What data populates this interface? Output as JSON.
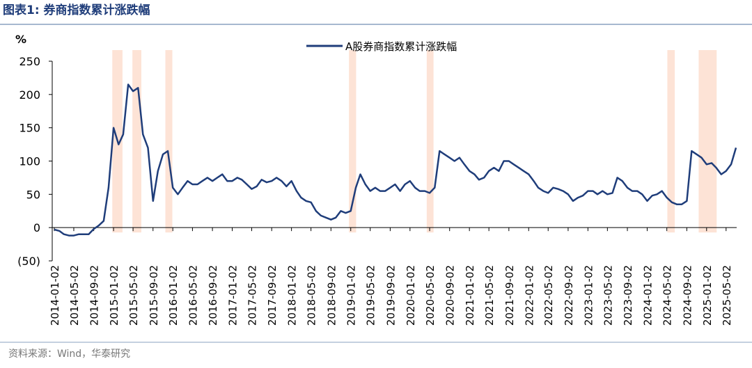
{
  "header": {
    "title": "图表1:  券商指数累计涨跌幅"
  },
  "chart_data": {
    "type": "line",
    "y_label": "%",
    "x": [
      "2014-01-02",
      "2014-02-02",
      "2014-03-02",
      "2014-04-02",
      "2014-05-02",
      "2014-06-02",
      "2014-07-02",
      "2014-08-02",
      "2014-09-02",
      "2014-10-02",
      "2014-11-02",
      "2014-12-02",
      "2015-01-02",
      "2015-02-02",
      "2015-03-02",
      "2015-04-02",
      "2015-05-02",
      "2015-06-02",
      "2015-07-02",
      "2015-08-02",
      "2015-09-02",
      "2015-10-02",
      "2015-11-02",
      "2015-12-02",
      "2016-01-02",
      "2016-02-02",
      "2016-03-02",
      "2016-04-02",
      "2016-05-02",
      "2016-06-02",
      "2016-07-02",
      "2016-08-02",
      "2016-09-02",
      "2016-10-02",
      "2016-11-02",
      "2016-12-02",
      "2017-01-02",
      "2017-02-02",
      "2017-03-02",
      "2017-04-02",
      "2017-05-02",
      "2017-06-02",
      "2017-07-02",
      "2017-08-02",
      "2017-09-02",
      "2017-10-02",
      "2017-11-02",
      "2017-12-02",
      "2018-01-02",
      "2018-02-02",
      "2018-03-02",
      "2018-04-02",
      "2018-05-02",
      "2018-06-02",
      "2018-07-02",
      "2018-08-02",
      "2018-09-02",
      "2018-10-02",
      "2018-11-02",
      "2018-12-02",
      "2019-01-02",
      "2019-02-02",
      "2019-03-02",
      "2019-04-02",
      "2019-05-02",
      "2019-06-02",
      "2019-07-02",
      "2019-08-02",
      "2019-09-02",
      "2019-10-02",
      "2019-11-02",
      "2019-12-02",
      "2020-01-02",
      "2020-02-02",
      "2020-03-02",
      "2020-04-02",
      "2020-05-02",
      "2020-06-02",
      "2020-07-02",
      "2020-08-02",
      "2020-09-02",
      "2020-10-02",
      "2020-11-02",
      "2020-12-02",
      "2021-01-02",
      "2021-02-02",
      "2021-03-02",
      "2021-04-02",
      "2021-05-02",
      "2021-06-02",
      "2021-07-02",
      "2021-08-02",
      "2021-09-02",
      "2021-10-02",
      "2021-11-02",
      "2021-12-02",
      "2022-01-02",
      "2022-02-02",
      "2022-03-02",
      "2022-04-02",
      "2022-05-02",
      "2022-06-02",
      "2022-07-02",
      "2022-08-02",
      "2022-09-02",
      "2022-10-02",
      "2022-11-02",
      "2022-12-02",
      "2023-01-02",
      "2023-02-02",
      "2023-03-02",
      "2023-04-02",
      "2023-05-02",
      "2023-06-02",
      "2023-07-02",
      "2023-08-02",
      "2023-09-02",
      "2023-10-02",
      "2023-11-02",
      "2023-12-02",
      "2024-01-02",
      "2024-02-02",
      "2024-03-02",
      "2024-04-02",
      "2024-05-02",
      "2024-06-02",
      "2024-07-02",
      "2024-08-02",
      "2024-09-02",
      "2024-10-02",
      "2024-11-02",
      "2024-12-02",
      "2025-01-02",
      "2025-02-02",
      "2025-03-02",
      "2025-04-02",
      "2025-05-02",
      "2025-06-02",
      "2025-07-02"
    ],
    "series": [
      {
        "name": "A股券商指数累计涨跌幅",
        "color": "#1f3d7a",
        "values": [
          -3,
          -5,
          -10,
          -12,
          -12,
          -10,
          -10,
          -10,
          -2,
          3,
          10,
          60,
          150,
          125,
          140,
          215,
          205,
          210,
          140,
          120,
          40,
          85,
          110,
          115,
          60,
          50,
          60,
          70,
          65,
          65,
          70,
          75,
          70,
          75,
          80,
          70,
          70,
          75,
          72,
          65,
          58,
          62,
          72,
          68,
          70,
          75,
          70,
          62,
          70,
          55,
          45,
          40,
          38,
          25,
          18,
          15,
          12,
          15,
          25,
          22,
          25,
          60,
          80,
          65,
          55,
          60,
          55,
          55,
          60,
          65,
          55,
          65,
          70,
          60,
          55,
          55,
          52,
          60,
          115,
          110,
          105,
          100,
          105,
          95,
          85,
          80,
          72,
          75,
          85,
          90,
          85,
          100,
          100,
          95,
          90,
          85,
          80,
          70,
          60,
          55,
          52,
          60,
          58,
          55,
          50,
          40,
          45,
          48,
          55,
          55,
          50,
          55,
          50,
          52,
          75,
          70,
          60,
          55,
          55,
          50,
          40,
          48,
          50,
          55,
          45,
          38,
          35,
          35,
          40,
          115,
          110,
          105,
          95,
          97,
          90,
          80,
          85,
          95,
          120
        ]
      }
    ],
    "highlights": [
      {
        "start": "2014-12-25",
        "end": "2015-02-26"
      },
      {
        "start": "2015-04-28",
        "end": "2015-06-22"
      },
      {
        "start": "2015-11-17",
        "end": "2015-12-30"
      },
      {
        "start": "2018-12-22",
        "end": "2019-02-04"
      },
      {
        "start": "2020-04-14",
        "end": "2020-05-26"
      },
      {
        "start": "2024-05-05",
        "end": "2024-06-20"
      },
      {
        "start": "2024-11-14",
        "end": "2025-03-05"
      }
    ],
    "highlight_color": "#fde3d6",
    "xlim": [
      "2014-01-02",
      "2025-07-02"
    ],
    "xticks": [
      "2014-01-02",
      "2014-05-02",
      "2014-09-02",
      "2015-01-02",
      "2015-05-02",
      "2015-09-02",
      "2016-01-02",
      "2016-05-02",
      "2016-09-02",
      "2017-01-02",
      "2017-05-02",
      "2017-09-02",
      "2018-01-02",
      "2018-05-02",
      "2018-09-02",
      "2019-01-02",
      "2019-05-02",
      "2019-09-02",
      "2020-01-02",
      "2020-05-02",
      "2020-09-02",
      "2021-01-02",
      "2021-05-02",
      "2021-09-02",
      "2022-01-02",
      "2022-05-02",
      "2022-09-02",
      "2023-01-02",
      "2023-05-02",
      "2023-09-02",
      "2024-01-02",
      "2024-05-02",
      "2024-09-02",
      "2025-01-02",
      "2025-05-02"
    ],
    "ylim": [
      -50,
      250
    ],
    "yticks": [
      {
        "value": -50,
        "label": "(50)"
      },
      0,
      50,
      100,
      150,
      200,
      250
    ],
    "legend": "top"
  },
  "footer": {
    "source": "资料来源：Wind，华泰研究"
  }
}
